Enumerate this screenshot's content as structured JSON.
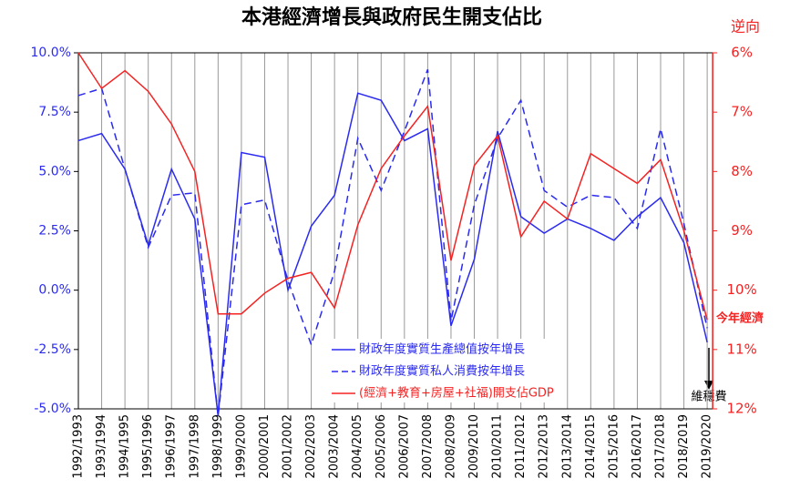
{
  "chart_data": {
    "type": "line",
    "title": "本港經濟增長與政府民生開支佔比",
    "y2_label": "逆向",
    "annotations": [
      "今年經濟",
      "維穩費"
    ],
    "categories": [
      "1992/1993",
      "1993/1994",
      "1994/1995",
      "1995/1996",
      "1996/1997",
      "1997/1998",
      "1998/1999",
      "1999/2000",
      "2000/2001",
      "2001/2002",
      "2002/2003",
      "2003/2004",
      "2004/2005",
      "2005/2006",
      "2006/2007",
      "2007/2008",
      "2008/2009",
      "2009/2010",
      "2010/2011",
      "2011/2012",
      "2012/2013",
      "2013/2014",
      "2014/2015",
      "2015/2016",
      "2016/2017",
      "2017/2018",
      "2018/2019",
      "2019/2020"
    ],
    "ylim": [
      -5,
      10
    ],
    "yticks": [
      {
        "value": 10,
        "label": "10.0%"
      },
      {
        "value": 7.5,
        "label": "7.5%"
      },
      {
        "value": 5,
        "label": "5.0%"
      },
      {
        "value": 2.5,
        "label": "2.5%"
      },
      {
        "value": 0,
        "label": "0.0%"
      },
      {
        "value": -2.5,
        "label": "-2.5%"
      },
      {
        "value": -5,
        "label": "-5.0%"
      }
    ],
    "y2lim": [
      12,
      6
    ],
    "y2ticks": [
      {
        "value": 6,
        "label": "6%"
      },
      {
        "value": 7,
        "label": "7%"
      },
      {
        "value": 8,
        "label": "8%"
      },
      {
        "value": 9,
        "label": "9%"
      },
      {
        "value": 10,
        "label": "10%"
      },
      {
        "value": 11,
        "label": "11%"
      },
      {
        "value": 12,
        "label": "12%"
      }
    ],
    "grid": true,
    "series": [
      {
        "name": "財政年度實質生產總值按年增長",
        "color": "#2b2bf0",
        "dash": false,
        "values": [
          6.3,
          6.6,
          5.1,
          1.9,
          5.1,
          3.0,
          -5.3,
          5.8,
          5.6,
          0.0,
          2.7,
          4.0,
          8.3,
          8.0,
          6.3,
          6.8,
          -1.5,
          1.3,
          6.7,
          3.1,
          2.4,
          3.0,
          2.6,
          2.1,
          3.1,
          3.9,
          2.0,
          -2.2
        ]
      },
      {
        "name": "財政年度實質私人消費按年增長",
        "color": "#2b2bf0",
        "dash": true,
        "values": [
          8.2,
          8.5,
          5.1,
          1.8,
          4.0,
          4.1,
          -5.3,
          3.6,
          3.8,
          0.4,
          -2.3,
          0.8,
          6.4,
          4.2,
          6.7,
          9.3,
          -1.3,
          3.6,
          6.4,
          8.0,
          4.2,
          3.5,
          4.0,
          3.9,
          2.6,
          6.8,
          2.8,
          -1.6
        ]
      },
      {
        "name": "(經濟+教育+房屋+社福)開支佔GDP",
        "color": "#f52222",
        "dash": false,
        "axis": "y2",
        "values": [
          6.0,
          6.6,
          6.3,
          6.65,
          7.2,
          8.0,
          10.4,
          10.4,
          10.05,
          9.8,
          9.7,
          10.3,
          8.9,
          7.95,
          7.4,
          6.9,
          9.5,
          7.9,
          7.4,
          9.1,
          8.5,
          8.8,
          7.7,
          7.95,
          8.2,
          7.8,
          9.0,
          10.5
        ]
      }
    ]
  }
}
